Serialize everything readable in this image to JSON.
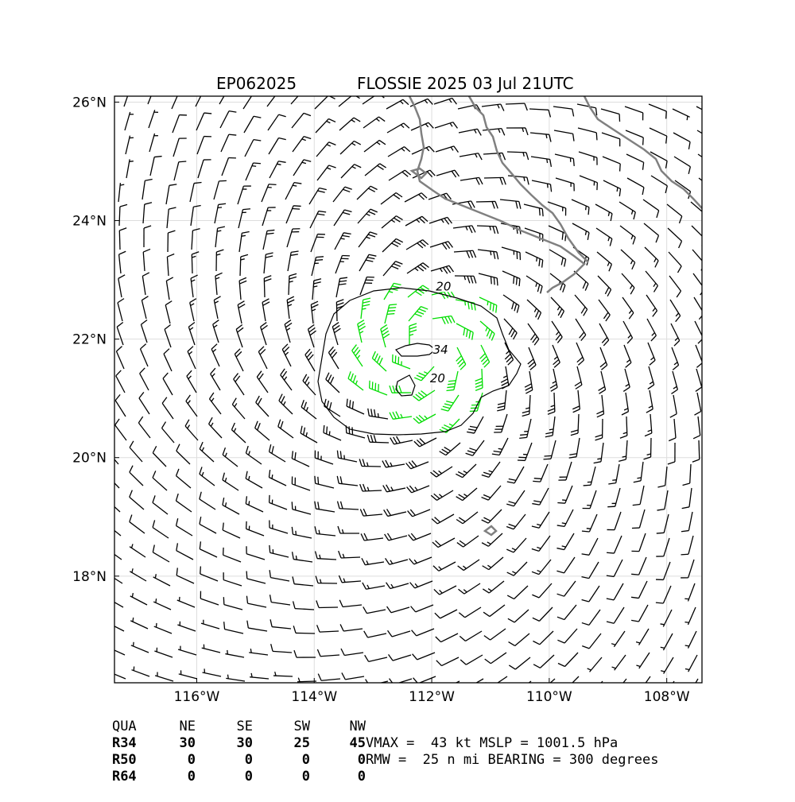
{
  "title": {
    "storm_id": "EP062025",
    "storm_name_time": "FLOSSIE 2025 03 Jul 21UTC"
  },
  "map": {
    "lon_range": [
      -117.4,
      -107.4
    ],
    "lat_range": [
      16.2,
      26.1
    ],
    "lon_ticks": [
      -116,
      -114,
      -112,
      -110,
      -108
    ],
    "lat_ticks": [
      18,
      20,
      22,
      24,
      26
    ],
    "lon_tick_labels": [
      "116°W",
      "114°W",
      "112°W",
      "110°W",
      "108°W"
    ],
    "lat_tick_labels": [
      "18°N",
      "20°N",
      "22°N",
      "24°N",
      "26°N"
    ],
    "center_lon": -112.1,
    "center_lat": 21.8,
    "contour_labels": [
      {
        "text": "20",
        "lon": -111.8,
        "lat": 22.85
      },
      {
        "text": "34",
        "lon": -111.85,
        "lat": 21.78
      },
      {
        "text": "20",
        "lon": -111.9,
        "lat": 21.3
      }
    ],
    "colors": {
      "coastline": "#808080",
      "barb": "#000000",
      "barb_34kt": "#00dd00",
      "barb_50kt": "#ffa500",
      "grid": "#dddddd"
    }
  },
  "wind_radii": {
    "header": [
      "QUA",
      "NE",
      "SE",
      "SW",
      "NW"
    ],
    "rows": [
      {
        "label": "R34",
        "values": [
          "30",
          "30",
          "25",
          "45"
        ]
      },
      {
        "label": "R50",
        "values": [
          "0",
          "0",
          "0",
          "0"
        ]
      },
      {
        "label": "R64",
        "values": [
          "0",
          "0",
          "0",
          "0"
        ]
      }
    ]
  },
  "summary": {
    "line1": "VMAX =  43 kt MSLP = 1001.5 hPa",
    "line2": "RMW =  25 n mi BEARING = 300 degrees"
  }
}
